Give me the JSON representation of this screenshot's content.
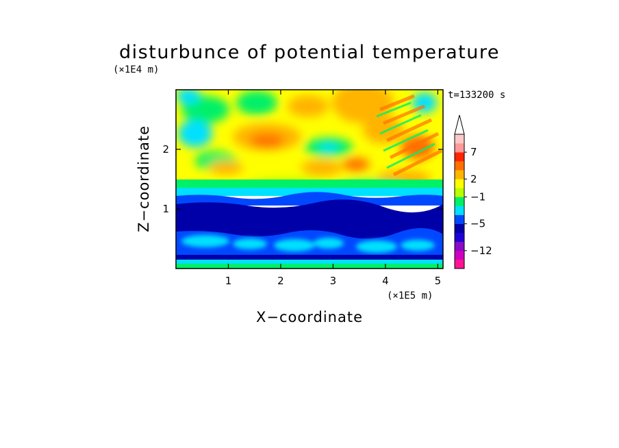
{
  "chart_data": {
    "type": "heatmap",
    "title": "disturbunce of potential temperature",
    "xlabel": "X−coordinate",
    "ylabel": "Z−coordinate",
    "x_unit": "(×1E5 m)",
    "y_unit": "(×1E4 m)",
    "time_label": "t=133200 s",
    "xlim": [
      0,
      5.1
    ],
    "ylim": [
      0,
      3
    ],
    "x_ticks": [
      "1",
      "2",
      "3",
      "4",
      "5"
    ],
    "y_ticks": [
      "1",
      "2"
    ],
    "x_tick_values": [
      1,
      2,
      3,
      4,
      5
    ],
    "y_tick_values": [
      1,
      2
    ],
    "colorbar": {
      "tick_labels": [
        "7",
        "2",
        "−1",
        "−5",
        "−12"
      ],
      "tick_level_index": [
        2,
        5,
        7,
        10,
        13
      ],
      "levels": [
        {
          "color": "#ff1493"
        },
        {
          "color": "#d000c0"
        },
        {
          "color": "#8a0ac8"
        },
        {
          "color": "#2000d8"
        },
        {
          "color": "#0000a8"
        },
        {
          "color": "#0048ff"
        },
        {
          "color": "#00e0ff"
        },
        {
          "color": "#00f068"
        },
        {
          "color": "#b8ff00"
        },
        {
          "color": "#ffff00"
        },
        {
          "color": "#ffb400"
        },
        {
          "color": "#ff7000"
        },
        {
          "color": "#ff2400"
        },
        {
          "color": "#ff9a9a"
        },
        {
          "color": "#ffc8c8"
        }
      ]
    }
  }
}
